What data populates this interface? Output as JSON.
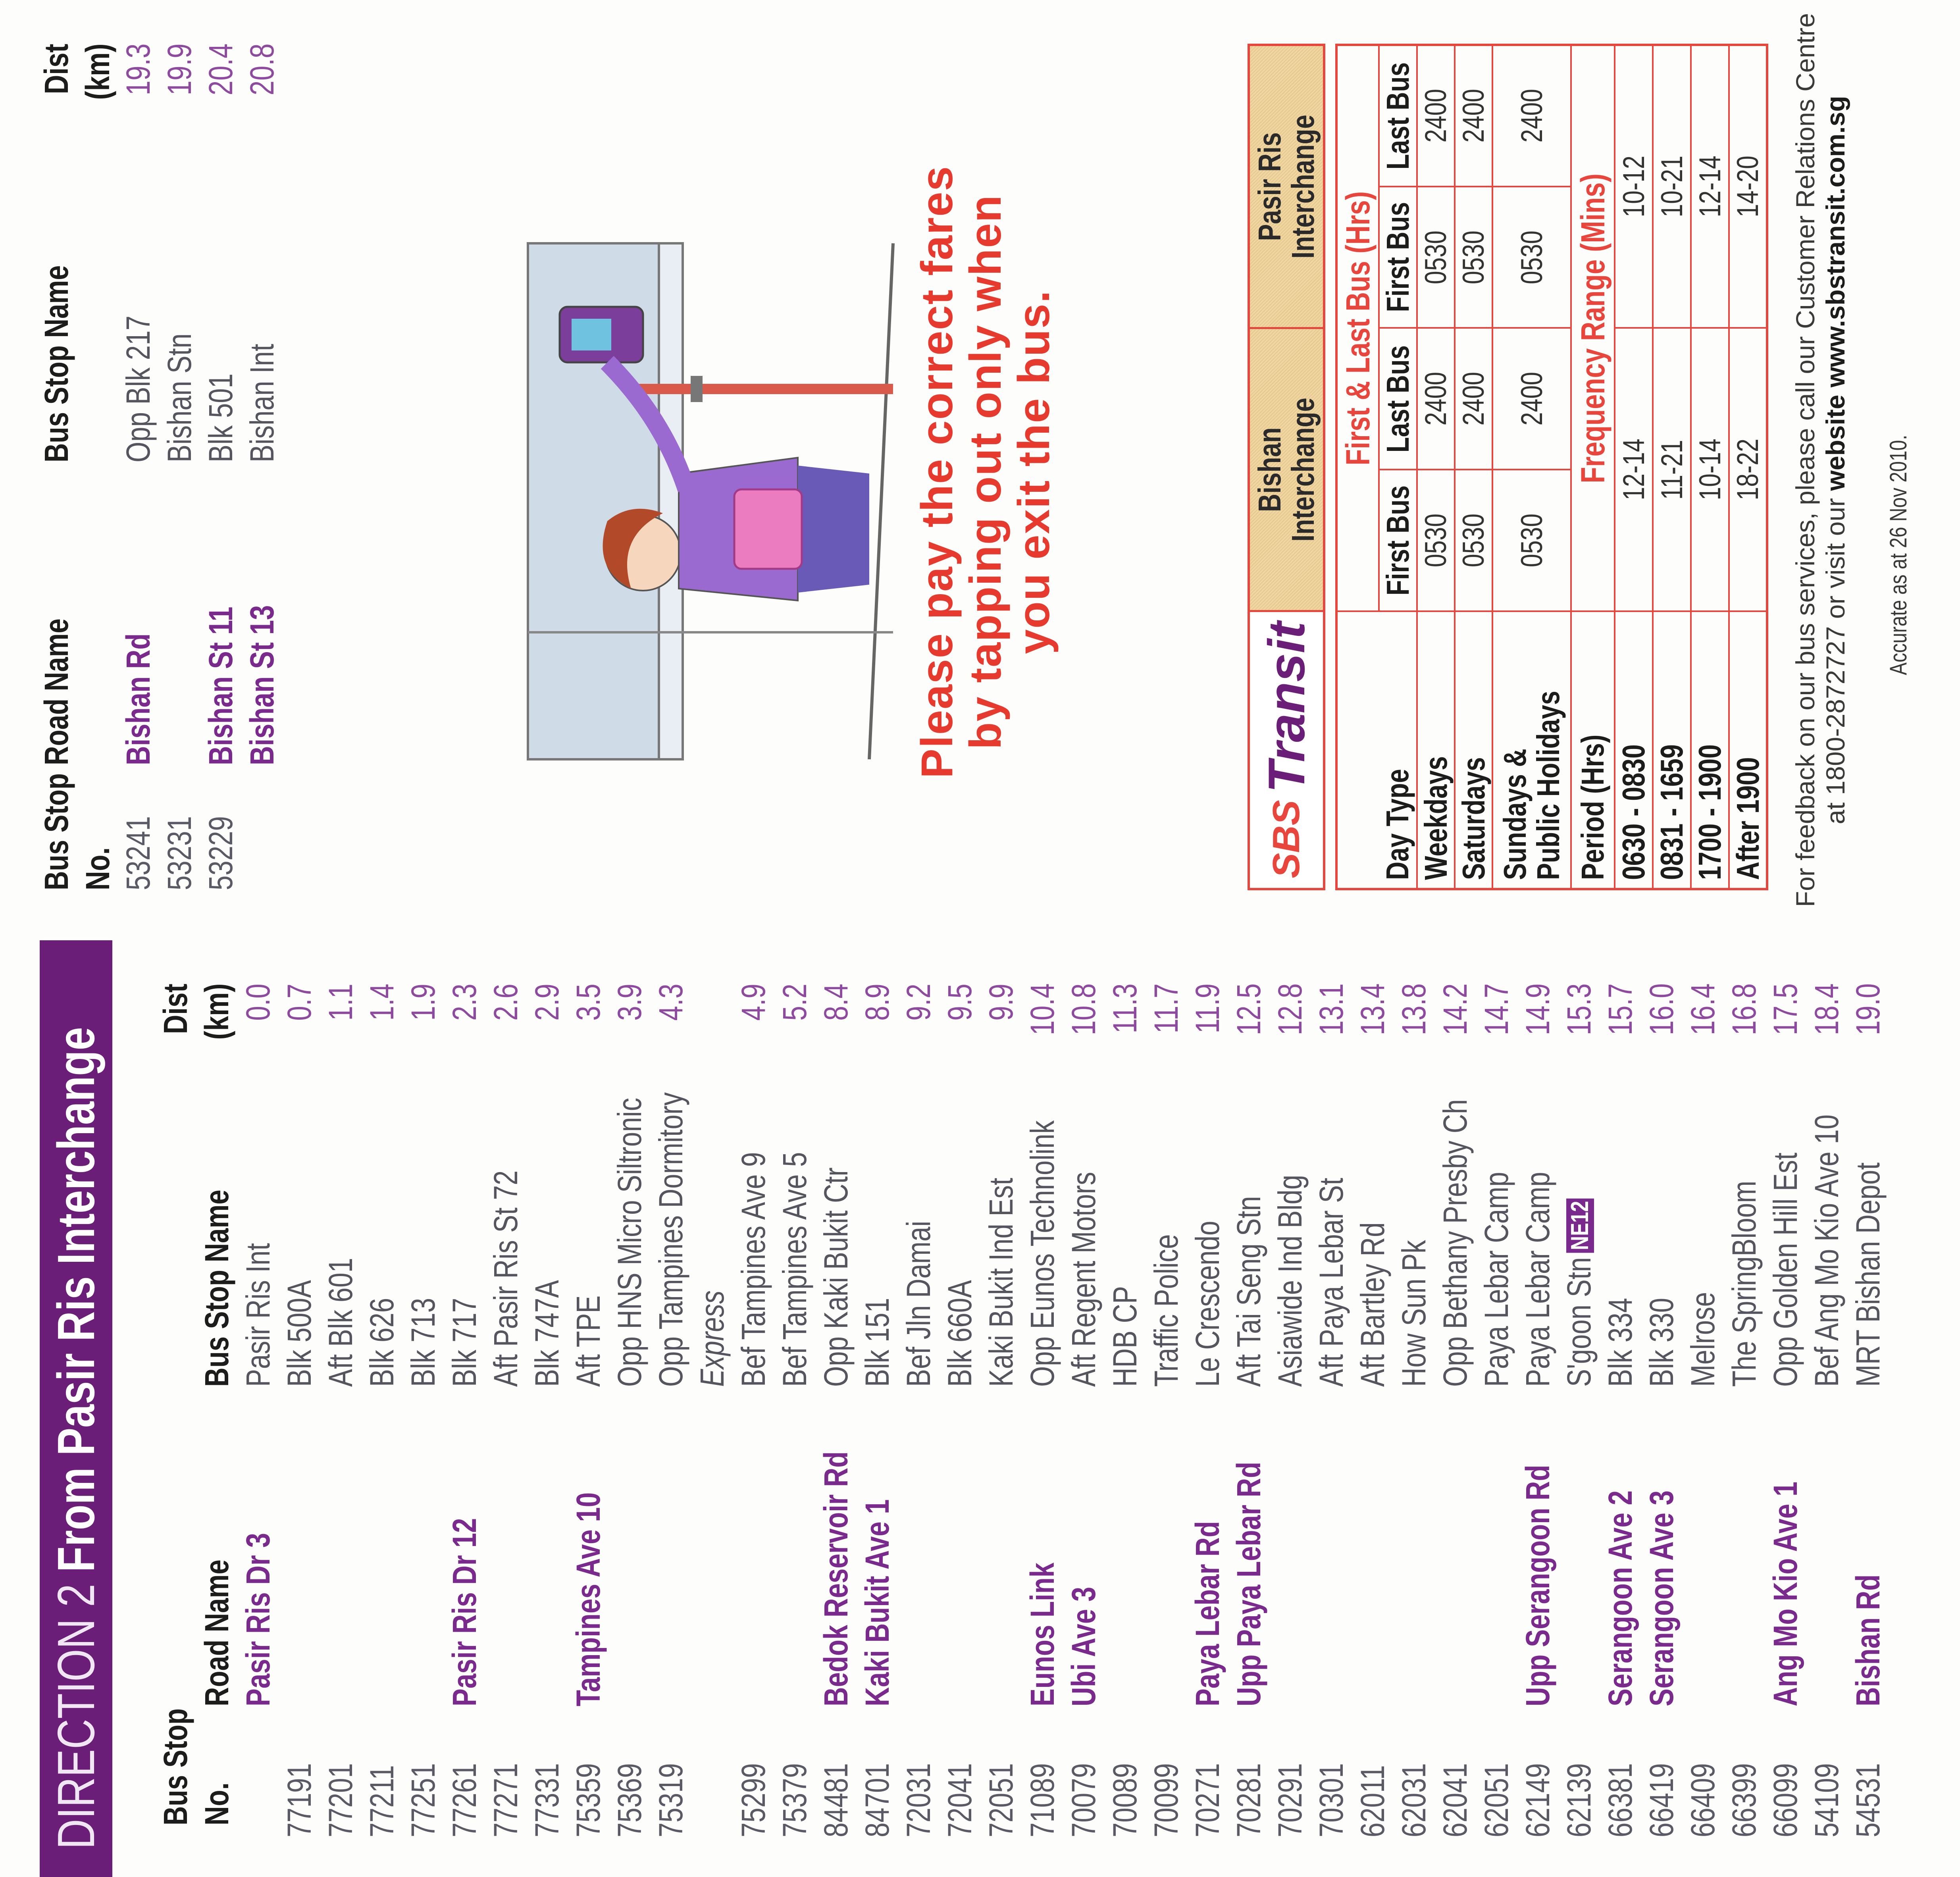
{
  "colors": {
    "header_purple": "#6b1e78",
    "road_purple": "#7a2a8c",
    "dist_purple": "#8e4a9e",
    "accent_red": "#e63a2e",
    "table_border": "#e8453c",
    "header_tan": "#e8c98e"
  },
  "direction2": {
    "title_prefix": "DIRECTION 2",
    "title_rest": "From Pasir Ris Interchange",
    "headers": {
      "no_1": "Bus Stop",
      "no_2": "No.",
      "road": "Road Name",
      "stop": "Bus Stop Name",
      "dist_1": "Dist",
      "dist_2": "(km)"
    },
    "rows": [
      {
        "no": "",
        "road": "Pasir Ris Dr 3",
        "stop": "Pasir Ris Int",
        "dist": "0.0"
      },
      {
        "no": "77191",
        "road": "",
        "stop": "Blk 500A",
        "dist": "0.7"
      },
      {
        "no": "77201",
        "road": "",
        "stop": "Aft Blk 601",
        "dist": "1.1"
      },
      {
        "no": "77211",
        "road": "",
        "stop": "Blk 626",
        "dist": "1.4"
      },
      {
        "no": "77251",
        "road": "",
        "stop": "Blk 713",
        "dist": "1.9"
      },
      {
        "no": "77261",
        "road": "Pasir Ris Dr 12",
        "stop": "Blk 717",
        "dist": "2.3"
      },
      {
        "no": "77271",
        "road": "",
        "stop": "Aft Pasir Ris St 72",
        "dist": "2.6"
      },
      {
        "no": "77331",
        "road": "",
        "stop": "Blk 747A",
        "dist": "2.9"
      },
      {
        "no": "75359",
        "road": "Tampines Ave 10",
        "stop": "Aft TPE",
        "dist": "3.5"
      },
      {
        "no": "75369",
        "road": "",
        "stop": "Opp HNS Micro Siltronic",
        "dist": "3.9"
      },
      {
        "no": "75319",
        "road": "",
        "stop": "Opp Tampines Dormitory",
        "dist": "4.3"
      },
      {
        "note": "Express"
      },
      {
        "no": "75299",
        "road": "",
        "stop": "Bef Tampines Ave 9",
        "dist": "4.9"
      },
      {
        "no": "75379",
        "road": "",
        "stop": "Bef Tampines Ave 5",
        "dist": "5.2"
      },
      {
        "no": "84481",
        "road": "Bedok Reservoir Rd",
        "stop": "Opp Kaki Bukit Ctr",
        "dist": "8.4"
      },
      {
        "no": "84701",
        "road": "Kaki Bukit Ave 1",
        "stop": "Blk 151",
        "dist": "8.9"
      },
      {
        "no": "72031",
        "road": "",
        "stop": "Bef Jln Damai",
        "dist": "9.2"
      },
      {
        "no": "72041",
        "road": "",
        "stop": "Blk 660A",
        "dist": "9.5"
      },
      {
        "no": "72051",
        "road": "",
        "stop": "Kaki Bukit Ind Est",
        "dist": "9.9"
      },
      {
        "no": "71089",
        "road": "Eunos Link",
        "stop": "Opp Eunos Technolink",
        "dist": "10.4"
      },
      {
        "no": "70079",
        "road": "Ubi Ave 3",
        "stop": "Aft Regent Motors",
        "dist": "10.8"
      },
      {
        "no": "70089",
        "road": "",
        "stop": "HDB CP",
        "dist": "11.3"
      },
      {
        "no": "70099",
        "road": "",
        "stop": "Traffic Police",
        "dist": "11.7"
      },
      {
        "no": "70271",
        "road": "Paya Lebar Rd",
        "stop": "Le Crescendo",
        "dist": "11.9"
      },
      {
        "no": "70281",
        "road": "Upp Paya Lebar Rd",
        "stop": "Aft Tai Seng Stn",
        "dist": "12.5"
      },
      {
        "no": "70291",
        "road": "",
        "stop": "Asiawide Ind Bldg",
        "dist": "12.8"
      },
      {
        "no": "70301",
        "road": "",
        "stop": "Aft Paya Lebar St",
        "dist": "13.1"
      },
      {
        "no": "62011",
        "road": "",
        "stop": "Aft Bartley Rd",
        "dist": "13.4"
      },
      {
        "no": "62031",
        "road": "",
        "stop": "How Sun Pk",
        "dist": "13.8"
      },
      {
        "no": "62041",
        "road": "",
        "stop": "Opp Bethany Presby Ch",
        "dist": "14.2"
      },
      {
        "no": "62051",
        "road": "",
        "stop": "Paya Lebar Camp",
        "dist": "14.7"
      },
      {
        "no": "62149",
        "road": "Upp Serangoon Rd",
        "stop": "Paya Lebar Camp",
        "dist": "14.9"
      },
      {
        "no": "62139",
        "road": "",
        "stop": "S'goon Stn",
        "badge": "NE12",
        "dist": "15.3"
      },
      {
        "no": "66381",
        "road": "Serangoon Ave 2",
        "stop": "Blk 334",
        "dist": "15.7"
      },
      {
        "no": "66419",
        "road": "Serangoon Ave 3",
        "stop": "Blk 330",
        "dist": "16.0"
      },
      {
        "no": "66409",
        "road": "",
        "stop": "Melrose",
        "dist": "16.4"
      },
      {
        "no": "66399",
        "road": "",
        "stop": "The SpringBloom",
        "dist": "16.8"
      },
      {
        "no": "66099",
        "road": "Ang Mo Kio Ave 1",
        "stop": "Opp Golden Hill Est",
        "dist": "17.5"
      },
      {
        "no": "54109",
        "road": "",
        "stop": "Bef Ang Mo Kio Ave 10",
        "dist": "18.4"
      },
      {
        "no": "54531",
        "road": "Bishan Rd",
        "stop": "MRT Bishan Depot",
        "dist": "19.0"
      }
    ]
  },
  "continuation": {
    "headers": {
      "no_1": "Bus Stop",
      "no_2": "No.",
      "road": "Road Name",
      "stop": "Bus Stop Name",
      "dist_1": "Dist",
      "dist_2": "(km)"
    },
    "rows": [
      {
        "no": "53241",
        "road": "Bishan Rd",
        "stop": "Opp Blk 217",
        "dist": "19.3"
      },
      {
        "no": "53231",
        "road": "",
        "stop": "Bishan Stn",
        "dist": "19.9"
      },
      {
        "no": "53229",
        "road": "Bishan St 11",
        "stop": "Blk 501",
        "dist": "20.4"
      },
      {
        "no": "",
        "road": "Bishan St 13",
        "stop": "Bishan Int",
        "dist": "20.8"
      }
    ]
  },
  "slogan": [
    "Please pay the correct fares",
    "by tapping out only when",
    "you exit the bus."
  ],
  "timetable": {
    "logo": {
      "sbs": "SBS",
      "transit": "Transit"
    },
    "interchanges": [
      {
        "line1": "Bishan",
        "line2": "Interchange"
      },
      {
        "line1": "Pasir Ris",
        "line2": "Interchange"
      }
    ],
    "first_last_title": "First & Last Bus (Hrs)",
    "day_type_label": "Day Type",
    "sub_headers": [
      "First Bus",
      "Last Bus",
      "First Bus",
      "Last Bus"
    ],
    "day_rows": [
      {
        "label": "Weekdays",
        "values": [
          "0530",
          "2400",
          "0530",
          "2400"
        ]
      },
      {
        "label": "Saturdays",
        "values": [
          "0530",
          "2400",
          "0530",
          "2400"
        ]
      },
      {
        "label": "Sundays & Public Holidays",
        "values": [
          "0530",
          "2400",
          "0530",
          "2400"
        ]
      }
    ],
    "period_label": "Period (Hrs)",
    "frequency_title": "Frequency Range (Mins)",
    "freq_rows": [
      {
        "period": "0630 - 0830",
        "values": [
          "12-14",
          "10-12"
        ]
      },
      {
        "period": "0831 - 1659",
        "values": [
          "11-21",
          "10-21"
        ]
      },
      {
        "period": "1700 - 1900",
        "values": [
          "10-14",
          "12-14"
        ]
      },
      {
        "period": "After 1900",
        "values": [
          "18-22",
          "14-20"
        ]
      }
    ]
  },
  "footer": {
    "line1": "For feedback on our bus services, please call our Customer Relations Centre",
    "line2_prefix": "at 1800-2872727 or visit our ",
    "line2_bold": "website www.sbstransit.com.sg",
    "accurate": "Accurate as at 26 Nov 2010."
  }
}
